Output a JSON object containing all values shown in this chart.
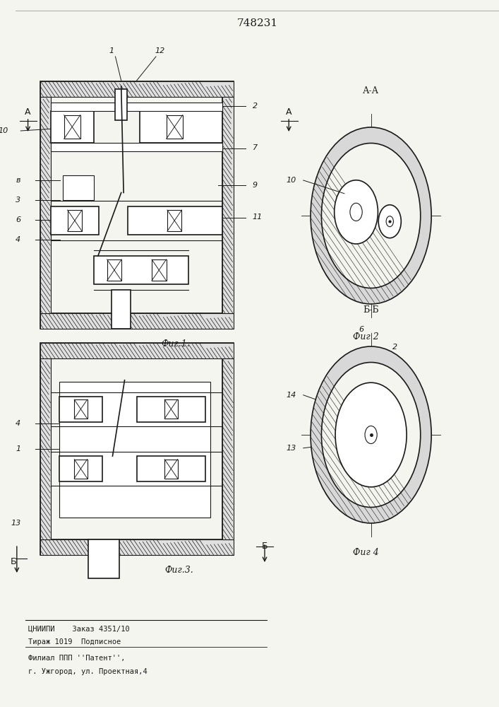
{
  "title": "748231",
  "bg_color": "#f5f5f0",
  "line_color": "#1a1a1a",
  "footer_lines": [
    "ЦНИИПИ    Заказ 4351/10",
    "Тираж 1019  Подписное",
    "",
    "Филиал ППП ''Патент'',",
    "г. Ужгород, ул. Проектная,4"
  ]
}
